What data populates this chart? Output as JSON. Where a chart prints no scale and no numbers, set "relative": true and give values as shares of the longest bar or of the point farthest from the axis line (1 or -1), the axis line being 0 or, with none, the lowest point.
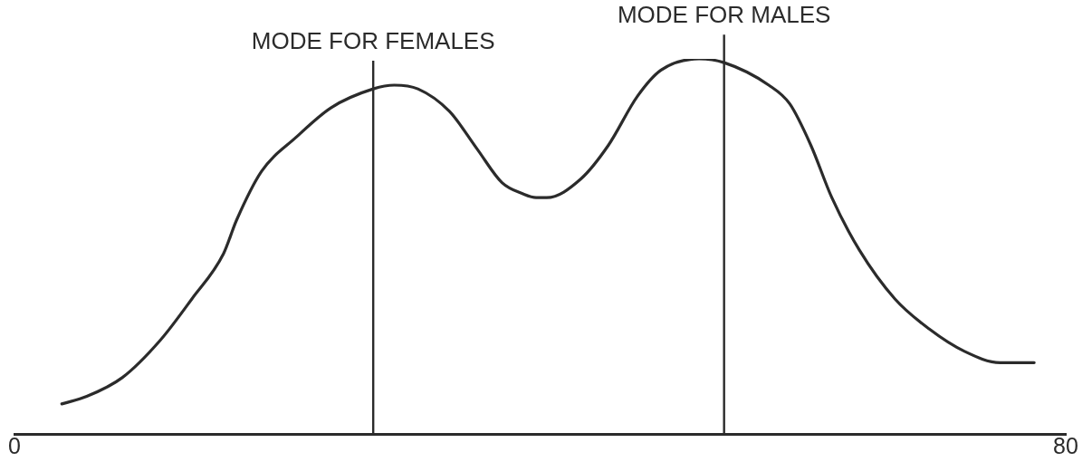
{
  "chart_data": {
    "type": "line",
    "relative": true,
    "x": [
      3.6,
      5.5,
      8.2,
      11.1,
      13.5,
      15.9,
      16.9,
      18.8,
      21.4,
      24.1,
      27.3,
      28.9,
      30.7,
      33.1,
      35.2,
      37.1,
      38.7,
      39.7,
      40.5,
      43.1,
      45.2,
      47.4,
      49.2,
      52.1,
      54.0,
      57.4,
      59.0,
      60.6,
      62.2,
      64.3,
      67.0,
      69.6,
      72.3,
      75.0,
      77.6
    ],
    "series": [
      {
        "color": "#2b2b2b",
        "values": [
          0.08,
          0.1,
          0.15,
          0.25,
          0.36,
          0.48,
          0.57,
          0.7,
          0.79,
          0.87,
          0.92,
          0.93,
          0.92,
          0.86,
          0.76,
          0.67,
          0.64,
          0.63,
          0.63,
          0.68,
          0.77,
          0.9,
          0.97,
          1.0,
          0.99,
          0.93,
          0.88,
          0.77,
          0.63,
          0.49,
          0.36,
          0.28,
          0.22,
          0.19,
          0.19
        ]
      }
    ],
    "xlim": [
      0,
      80
    ],
    "xticks": [
      0,
      80
    ],
    "ref_lines": [
      {
        "axis": "x",
        "value": 27.3,
        "label": "MODE FOR FEMALES"
      },
      {
        "axis": "x",
        "value": 54.0,
        "label": "MODE FOR MALES"
      }
    ]
  }
}
